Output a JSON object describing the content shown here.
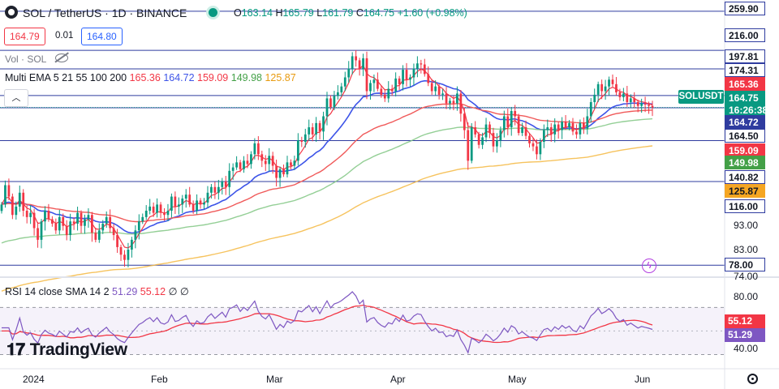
{
  "header": {
    "symbol_title": "SOL / TetherUS · 1D · BINANCE",
    "ohlc": [
      {
        "k": "O",
        "v": "163.14"
      },
      {
        "k": "H",
        "v": "165.79"
      },
      {
        "k": "L",
        "v": "161.79"
      },
      {
        "k": "C",
        "v": "164.75"
      }
    ],
    "change": "+1.60 (+0.98%)",
    "sell_price": "164.79",
    "spread": "0.01",
    "buy_price": "164.80"
  },
  "volume_legend": "Vol · SOL",
  "ema_legend": {
    "label": "Multi EMA 5 21 55 100 200",
    "values": [
      "165.36",
      "164.72",
      "159.09",
      "149.98",
      "125.87"
    ]
  },
  "rsi_legend": {
    "label": "RSI 14 close SMA 14 2",
    "values": [
      "51.29",
      "55.12"
    ],
    "extra": "∅ ∅"
  },
  "pair_tag": {
    "name": "SOLUSDT",
    "price": "164.75",
    "countdown": "16:26:38"
  },
  "colors": {
    "up": "#089981",
    "down": "#f23645",
    "ema5": "#f23645",
    "ema21": "#3d54e8",
    "ema55": "#f05a5a",
    "ema100": "#81c784",
    "ema200": "#f5b942",
    "rsi": "#7e57c2",
    "rsi_sma": "#f23645",
    "hline": "#2f3c9f"
  },
  "price_axis": {
    "plain_labels": [
      "93.00",
      "83.00",
      "74.00"
    ],
    "tags": [
      {
        "text": "259.90",
        "bg": "#ffffff",
        "fg": "#131722",
        "border": "#2f3c9f"
      },
      {
        "text": "216.00",
        "bg": "#ffffff",
        "fg": "#131722",
        "border": "#2f3c9f"
      },
      {
        "text": "197.81",
        "bg": "#ffffff",
        "fg": "#131722",
        "border": "#2f3c9f"
      },
      {
        "text": "174.31",
        "bg": "#ffffff",
        "fg": "#131722",
        "border": "#2f3c9f"
      },
      {
        "text": "165.36",
        "bg": "#f23645",
        "fg": "#ffffff",
        "border": "#f23645"
      },
      {
        "text": "164.75",
        "bg": "#089981",
        "fg": "#ffffff",
        "border": "#089981"
      },
      {
        "text": "16:26:38",
        "bg": "#089981",
        "fg": "#ffffff",
        "border": "#089981"
      },
      {
        "text": "164.72",
        "bg": "#2f3c9f",
        "fg": "#ffffff",
        "border": "#2f3c9f"
      },
      {
        "text": "164.50",
        "bg": "#ffffff",
        "fg": "#131722",
        "border": "#2f3c9f"
      },
      {
        "text": "159.09",
        "bg": "#f23645",
        "fg": "#ffffff",
        "border": "#f23645"
      },
      {
        "text": "149.98",
        "bg": "#43a047",
        "fg": "#ffffff",
        "border": "#43a047"
      },
      {
        "text": "140.82",
        "bg": "#ffffff",
        "fg": "#131722",
        "border": "#2f3c9f"
      },
      {
        "text": "125.87",
        "bg": "#f5a623",
        "fg": "#131722",
        "border": "#f5a623"
      },
      {
        "text": "116.00",
        "bg": "#ffffff",
        "fg": "#131722",
        "border": "#2f3c9f"
      },
      {
        "text": "78.00",
        "bg": "#ffffff",
        "fg": "#131722",
        "border": "#2f3c9f"
      }
    ]
  },
  "rsi_axis": {
    "plain_labels": [
      "80.00",
      "40.00"
    ],
    "tags": [
      {
        "text": "55.12",
        "bg": "#f23645",
        "fg": "#ffffff"
      },
      {
        "text": "51.29",
        "bg": "#7e57c2",
        "fg": "#ffffff"
      }
    ]
  },
  "time_axis": {
    "labels": [
      "2024",
      "Feb",
      "Mar",
      "Apr",
      "May",
      "Jun"
    ]
  },
  "brand": "TradingView",
  "chart_data": {
    "type": "candlestick",
    "title": "SOL / TetherUS · 1D · BINANCE",
    "x_range": [
      "2023-12-22",
      "2024-06-04"
    ],
    "y_scale": "log",
    "y_range": [
      74,
      270
    ],
    "horizontal_levels": [
      259.9,
      216.0,
      197.81,
      174.31,
      164.5,
      140.82,
      116.0,
      78.0
    ],
    "closes": [
      104,
      114,
      108,
      99,
      103,
      110,
      101,
      98,
      100,
      93,
      88,
      96,
      101,
      97,
      95,
      92,
      98,
      94,
      90,
      96,
      95,
      100,
      94,
      97,
      99,
      91,
      88,
      92,
      95,
      98,
      93,
      90,
      85,
      82,
      80,
      84,
      88,
      92,
      96,
      98,
      101,
      103,
      100,
      104,
      100,
      99,
      101,
      108,
      103,
      104,
      107,
      109,
      104,
      101,
      106,
      104,
      105,
      110,
      113,
      110,
      113,
      116,
      113,
      122,
      124,
      127,
      123,
      128,
      126,
      132,
      139,
      132,
      128,
      126,
      131,
      125,
      118,
      123,
      120,
      127,
      125,
      128,
      141,
      140,
      145,
      150,
      145,
      153,
      147,
      158,
      172,
      165,
      174,
      177,
      182,
      190,
      198,
      210,
      206,
      198,
      208,
      178,
      185,
      188,
      180,
      175,
      172,
      180,
      178,
      189,
      184,
      197,
      188,
      190,
      198,
      203,
      202,
      193,
      185,
      178,
      182,
      175,
      176,
      168,
      170,
      168,
      176,
      160,
      148,
      128,
      150,
      145,
      138,
      143,
      152,
      146,
      137,
      141,
      148,
      158,
      150,
      162,
      158,
      146,
      150,
      144,
      139,
      137,
      132,
      140,
      148,
      150,
      145,
      152,
      148,
      154,
      150,
      153,
      147,
      145,
      153,
      149,
      158,
      169,
      175,
      184,
      178,
      182,
      188,
      184,
      177,
      173,
      176,
      169,
      172,
      169,
      166,
      168,
      167,
      166,
      164.75
    ],
    "ema": [
      {
        "name": "EMA 5",
        "last": 165.36,
        "color": "#f23645"
      },
      {
        "name": "EMA 21",
        "last": 164.72,
        "color": "#3d54e8"
      },
      {
        "name": "EMA 55",
        "last": 159.09,
        "color": "#f05a5a"
      },
      {
        "name": "EMA 100",
        "last": 149.98,
        "color": "#81c784"
      },
      {
        "name": "EMA 200",
        "last": 125.87,
        "color": "#f5b942"
      }
    ],
    "rsi": {
      "length": 14,
      "sma_length": 14,
      "range": [
        20,
        95
      ],
      "band": [
        30,
        70
      ],
      "last_rsi": 51.29,
      "last_sma": 55.12
    }
  }
}
